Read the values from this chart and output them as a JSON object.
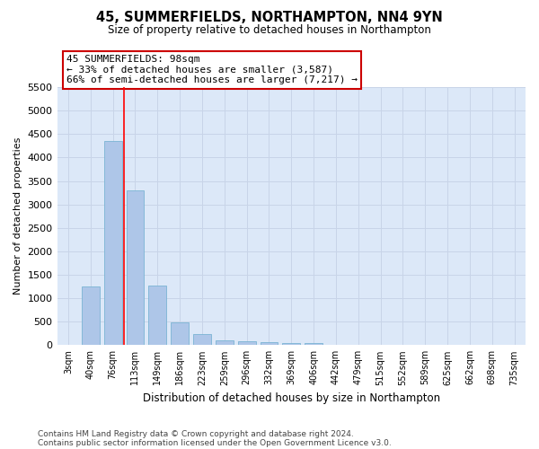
{
  "title": "45, SUMMERFIELDS, NORTHAMPTON, NN4 9YN",
  "subtitle": "Size of property relative to detached houses in Northampton",
  "xlabel": "Distribution of detached houses by size in Northampton",
  "ylabel": "Number of detached properties",
  "footnote1": "Contains HM Land Registry data © Crown copyright and database right 2024.",
  "footnote2": "Contains public sector information licensed under the Open Government Licence v3.0.",
  "categories": [
    "3sqm",
    "40sqm",
    "76sqm",
    "113sqm",
    "149sqm",
    "186sqm",
    "223sqm",
    "259sqm",
    "296sqm",
    "332sqm",
    "369sqm",
    "406sqm",
    "442sqm",
    "479sqm",
    "515sqm",
    "552sqm",
    "589sqm",
    "625sqm",
    "662sqm",
    "698sqm",
    "735sqm"
  ],
  "values": [
    0,
    1250,
    4350,
    3300,
    1275,
    480,
    230,
    100,
    75,
    60,
    50,
    50,
    0,
    0,
    0,
    0,
    0,
    0,
    0,
    0,
    0
  ],
  "bar_color": "#aec6e8",
  "bar_edge_color": "#7ab4d4",
  "grid_color": "#c8d4e8",
  "background_color": "#dce8f8",
  "annotation_text": "45 SUMMERFIELDS: 98sqm\n← 33% of detached houses are smaller (3,587)\n66% of semi-detached houses are larger (7,217) →",
  "annotation_box_color": "#ffffff",
  "annotation_box_edge": "#cc0000",
  "red_line_x": 2.5,
  "ylim": [
    0,
    5500
  ],
  "yticks": [
    0,
    500,
    1000,
    1500,
    2000,
    2500,
    3000,
    3500,
    4000,
    4500,
    5000,
    5500
  ]
}
